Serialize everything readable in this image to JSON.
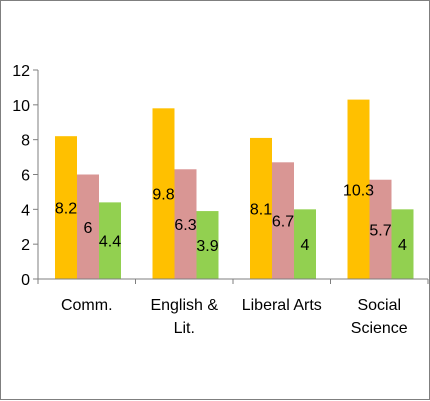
{
  "chart_data": {
    "type": "bar",
    "categories": [
      [
        "Comm."
      ],
      [
        "English &",
        "Lit."
      ],
      [
        "Liberal Arts"
      ],
      [
        "Social",
        "Science"
      ]
    ],
    "series": [
      {
        "color": "#FFC000",
        "values": [
          8.2,
          9.8,
          8.1,
          10.3
        ]
      },
      {
        "color": "#D99694",
        "values": [
          6,
          6.3,
          6.7,
          5.7
        ]
      },
      {
        "color": "#92D050",
        "values": [
          4.4,
          3.9,
          4,
          4
        ]
      }
    ],
    "data_labels": [
      [
        "8.2",
        "9.8",
        "8.1",
        "10.3"
      ],
      [
        "6",
        "6.3",
        "6.7",
        "5.7"
      ],
      [
        "4.4",
        "3.9",
        "4",
        "4"
      ]
    ],
    "y_ticks": [
      "0",
      "2",
      "4",
      "6",
      "8",
      "10",
      "12"
    ],
    "ylim": [
      0,
      12
    ],
    "grid": false,
    "legend": "none",
    "title": "",
    "xlabel": "",
    "ylabel": ""
  }
}
